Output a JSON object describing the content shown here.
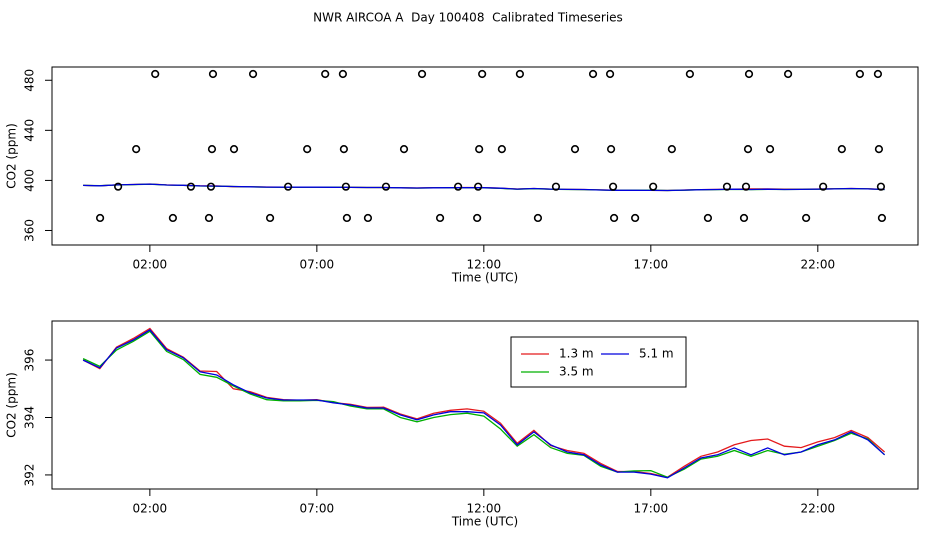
{
  "chart_data": [
    {
      "type": "scatter",
      "title": "NWR AIRCOA A  Day 100408  Calibrated Timeseries",
      "xlabel": "Time (UTC)",
      "ylabel": "CO2 (ppm)",
      "xlim": [
        -0.93,
        25.0
      ],
      "ylim": [
        348.4,
        490.6
      ],
      "xticks": [
        {
          "value": 2,
          "label": "02:00"
        },
        {
          "value": 7,
          "label": "07:00"
        },
        {
          "value": 12,
          "label": "12:00"
        },
        {
          "value": 17,
          "label": "17:00"
        },
        {
          "value": 22,
          "label": "22:00"
        }
      ],
      "yticks": [
        360,
        400,
        440,
        480
      ],
      "color": "#000000",
      "x": [
        2.16,
        3.89,
        5.09,
        7.25,
        7.78,
        10.15,
        11.95,
        13.08,
        15.27,
        15.78,
        18.17,
        19.94,
        21.11,
        23.26,
        23.8,
        1.59,
        3.86,
        4.52,
        6.71,
        7.81,
        9.61,
        11.86,
        12.54,
        14.73,
        15.81,
        17.63,
        19.91,
        20.57,
        22.72,
        23.83,
        1.05,
        3.23,
        3.83,
        6.14,
        7.87,
        9.07,
        11.23,
        11.83,
        14.16,
        15.87,
        17.07,
        19.28,
        19.85,
        22.16,
        23.89,
        0.51,
        2.69,
        3.77,
        5.6,
        7.9,
        8.53,
        10.69,
        11.8,
        13.62,
        15.9,
        16.53,
        18.71,
        19.79,
        21.65,
        23.92
      ],
      "values": [
        485,
        485,
        485,
        485,
        485,
        485,
        485,
        485,
        485,
        485,
        485,
        485,
        485,
        485,
        485,
        425,
        425,
        425,
        425,
        425,
        425,
        425,
        425,
        425,
        425,
        425,
        425,
        425,
        425,
        425,
        395,
        395,
        395,
        395,
        395,
        395,
        395,
        395,
        395,
        395,
        395,
        395,
        395,
        395,
        395,
        370,
        370,
        370,
        370,
        370,
        370,
        370,
        370,
        370,
        370,
        370,
        370,
        370,
        370,
        370
      ]
    },
    {
      "type": "line",
      "xlabel": "Time (UTC)",
      "ylabel": "CO2 (ppm)",
      "xlim": [
        -0.93,
        25.0
      ],
      "ylim": [
        391.51,
        397.36
      ],
      "xticks": [
        {
          "value": 2,
          "label": "02:00"
        },
        {
          "value": 7,
          "label": "07:00"
        },
        {
          "value": 12,
          "label": "12:00"
        },
        {
          "value": 17,
          "label": "17:00"
        },
        {
          "value": 22,
          "label": "22:00"
        }
      ],
      "yticks": [
        392,
        394,
        396
      ],
      "legend": true,
      "x": [
        0,
        0.5,
        1,
        1.5,
        2,
        2.5,
        3,
        3.5,
        4,
        4.5,
        5,
        5.5,
        6,
        6.5,
        7,
        7.5,
        8,
        8.5,
        9,
        9.5,
        10,
        10.5,
        11,
        11.5,
        12,
        12.5,
        13,
        13.5,
        14,
        14.5,
        15,
        15.5,
        16,
        16.5,
        17,
        17.5,
        18,
        18.5,
        19,
        19.5,
        20,
        20.5,
        21,
        21.5,
        22,
        22.5,
        23,
        23.5,
        24
      ],
      "series": [
        {
          "name": "1.3 m",
          "color": "#e41a1c",
          "values": [
            396.0,
            395.7,
            396.45,
            396.75,
            397.1,
            396.4,
            396.1,
            395.62,
            395.6,
            395.0,
            394.9,
            394.7,
            394.62,
            394.6,
            394.62,
            394.52,
            394.46,
            394.35,
            394.36,
            394.12,
            393.95,
            394.15,
            394.25,
            394.3,
            394.22,
            393.8,
            393.1,
            393.55,
            393.02,
            392.85,
            392.75,
            392.4,
            392.12,
            392.12,
            392.05,
            391.92,
            392.3,
            392.65,
            392.8,
            393.05,
            393.2,
            393.25,
            393.0,
            392.95,
            393.15,
            393.3,
            393.55,
            393.3,
            392.8
          ]
        },
        {
          "name": "3.5 m",
          "color": "#00b000",
          "values": [
            396.05,
            395.78,
            396.35,
            396.65,
            397.0,
            396.3,
            396.02,
            395.5,
            395.4,
            395.1,
            394.82,
            394.62,
            394.58,
            394.58,
            394.6,
            394.55,
            394.4,
            394.3,
            394.3,
            394.0,
            393.85,
            394.0,
            394.1,
            394.15,
            394.05,
            393.6,
            393.0,
            393.4,
            392.95,
            392.75,
            392.68,
            392.3,
            392.1,
            392.14,
            392.15,
            391.92,
            392.2,
            392.55,
            392.65,
            392.85,
            392.65,
            392.85,
            392.72,
            392.8,
            393.0,
            393.2,
            393.45,
            393.25,
            392.7
          ]
        },
        {
          "name": "5.1 m",
          "color": "#0000dd",
          "values": [
            396.0,
            395.73,
            396.42,
            396.7,
            397.05,
            396.36,
            396.08,
            395.59,
            395.48,
            395.14,
            394.86,
            394.68,
            394.61,
            394.61,
            394.61,
            394.51,
            394.44,
            394.33,
            394.33,
            394.09,
            393.92,
            394.09,
            394.2,
            394.2,
            394.16,
            393.74,
            393.05,
            393.5,
            393.05,
            392.8,
            392.7,
            392.35,
            392.1,
            392.1,
            392.03,
            391.9,
            392.24,
            392.59,
            392.7,
            392.94,
            392.7,
            392.94,
            392.7,
            392.8,
            393.05,
            393.22,
            393.5,
            393.22,
            392.7
          ]
        }
      ]
    }
  ]
}
